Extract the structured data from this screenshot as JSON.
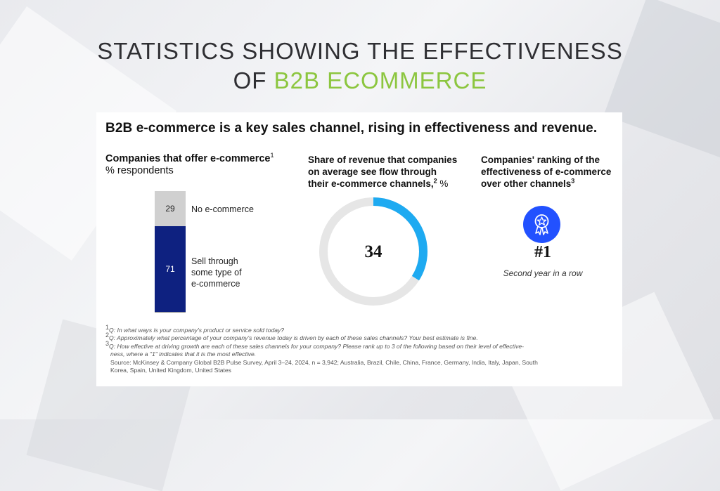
{
  "headline": {
    "line1": "STATISTICS SHOWING THE EFFECTIVENESS",
    "line2_plain": "OF ",
    "line2_accent": "B2B ECOMMERCE"
  },
  "card": {
    "title": "B2B e-commerce is a key sales channel, rising in effectiveness and revenue."
  },
  "chart_data": [
    {
      "type": "bar",
      "title": "Companies that offer e-commerce",
      "title_sup": "1",
      "subtitle": "% respondents",
      "stacked": true,
      "categories": [
        ""
      ],
      "series": [
        {
          "name": "No e-commerce",
          "values": [
            29
          ],
          "color": "#d0d0d0"
        },
        {
          "name": "Sell through some type of e-commerce",
          "values": [
            71
          ],
          "color": "#0e2180"
        }
      ],
      "labels": {
        "no_ecommerce": [
          "No e-commerce"
        ],
        "sell_through": [
          "Sell through",
          "some type of",
          "e-commerce"
        ]
      }
    },
    {
      "type": "pie",
      "title_lines": [
        "Share of revenue that companies",
        "on average see flow through",
        "their e-commerce channels,"
      ],
      "title_sup": "2",
      "title_unit": "%",
      "value": 34,
      "total": 100,
      "colors": {
        "value": "#1eaaf1",
        "rest": "#e6e6e6"
      }
    }
  ],
  "ranking": {
    "title_lines": [
      "Companies' ranking of the",
      "effectiveness of e-commerce",
      "over other channels"
    ],
    "title_sup": "3",
    "rank": "#1",
    "subtitle": "Second year in a row",
    "badge_color": "#2251ff",
    "icon": "award-ribbon-icon"
  },
  "notes": {
    "n1_sup": "1",
    "n1": "Q: In what ways is your company's product or service sold today?",
    "n2_sup": "2",
    "n2": "Q: Approximately what percentage of your company's revenue today is driven by each of these sales channels? Your best estimate is fine.",
    "n3_sup": "3",
    "n3a": "Q: How effective at driving growth are each of these sales channels for your company? Please rank up to 3 of the following based on their level of effective-",
    "n3b": "ness, where a \"1\" indicates that it is the most effective.",
    "source_a": "Source: McKinsey & Company Global B2B Pulse Survey, April 3–24, 2024, n = 3,942; Australia, Brazil, Chile, China, France, Germany, India, Italy, Japan, South",
    "source_b": "Korea, Spain, United Kingdom, United States"
  }
}
